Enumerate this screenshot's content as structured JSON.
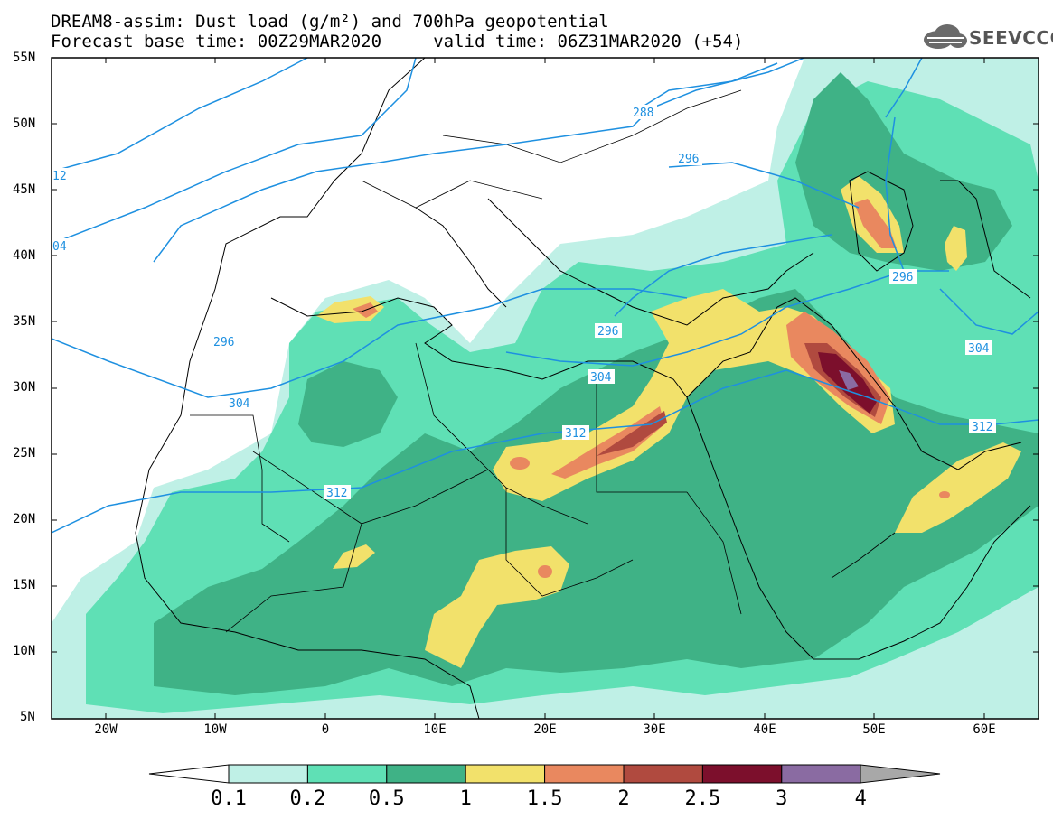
{
  "header": {
    "title_line1": "DREAM8-assim: Dust load (g/m²) and 700hPa geopotential",
    "title_line2": "Forecast base time: 00Z29MAR2020     valid time: 06Z31MAR2020 (+54)",
    "logo_text": "SEEVCCC"
  },
  "axes": {
    "lat_labels": [
      "55N",
      "50N",
      "45N",
      "40N",
      "35N",
      "30N",
      "25N",
      "20N",
      "15N",
      "10N",
      "5N"
    ],
    "lon_labels": [
      "20W",
      "10W",
      "0",
      "10E",
      "20E",
      "30E",
      "40E",
      "50E",
      "60E"
    ]
  },
  "contours": {
    "labels": [
      "288",
      "296",
      "296",
      "296",
      "296",
      "304",
      "304",
      "304",
      "312",
      "312",
      "312",
      "12",
      "04"
    ]
  },
  "colorbar": {
    "labels": [
      "0.1",
      "0.2",
      "0.5",
      "1",
      "1.5",
      "2",
      "2.5",
      "3",
      "4"
    ],
    "colors": [
      "#bff0e6",
      "#5fe0b5",
      "#3fb286",
      "#f2e16b",
      "#e9885f",
      "#b04a3f",
      "#7c0f2c",
      "#8a6ba2"
    ],
    "over_color": "#a8a8a8",
    "under_color": "#ffffff"
  }
}
